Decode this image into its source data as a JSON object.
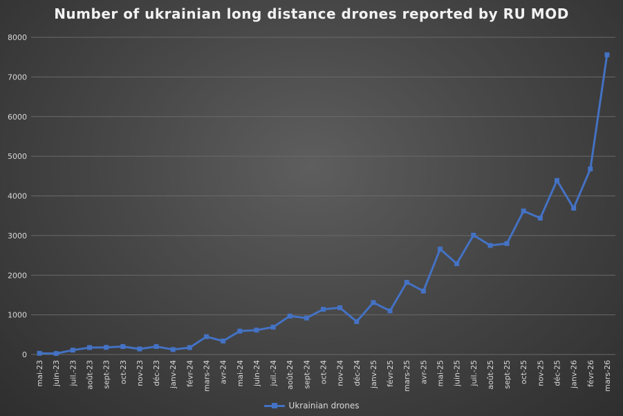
{
  "chart_data": {
    "type": "line",
    "title": "Number of ukrainian long distance drones reported by RU MOD",
    "xlabel": "",
    "ylabel": "",
    "ylim": [
      0,
      8000
    ],
    "yticks": [
      "0",
      "1000",
      "2000",
      "3000",
      "4000",
      "5000",
      "6000",
      "7000",
      "8000"
    ],
    "grid": true,
    "legend_position": "bottom",
    "categories": [
      "mai-23",
      "juin-23",
      "juil.-23",
      "août-23",
      "sept-23",
      "oct-23",
      "nov-23",
      "déc-23",
      "janv-24",
      "févr-24",
      "mars-24",
      "avr-24",
      "mai-24",
      "juin-24",
      "juil.-24",
      "août-24",
      "sept-24",
      "oct-24",
      "nov-24",
      "déc-24",
      "janv-25",
      "févr-25",
      "mars-25",
      "avr-25",
      "mai-25",
      "juin-25",
      "juil.-25",
      "août-25",
      "sept-25",
      "oct-25",
      "nov-25",
      "déc-25",
      "janv-26",
      "févr-26",
      "mars-26"
    ],
    "series": [
      {
        "name": "Ukrainian drones",
        "color": "#4472c4",
        "values": [
          30,
          25,
          110,
          175,
          180,
          200,
          140,
          200,
          125,
          175,
          450,
          340,
          590,
          615,
          690,
          970,
          920,
          1140,
          1180,
          830,
          1310,
          1100,
          1820,
          1600,
          2660,
          2290,
          3010,
          2750,
          2800,
          3620,
          3440,
          4390,
          3690,
          4680,
          7560
        ]
      }
    ]
  }
}
